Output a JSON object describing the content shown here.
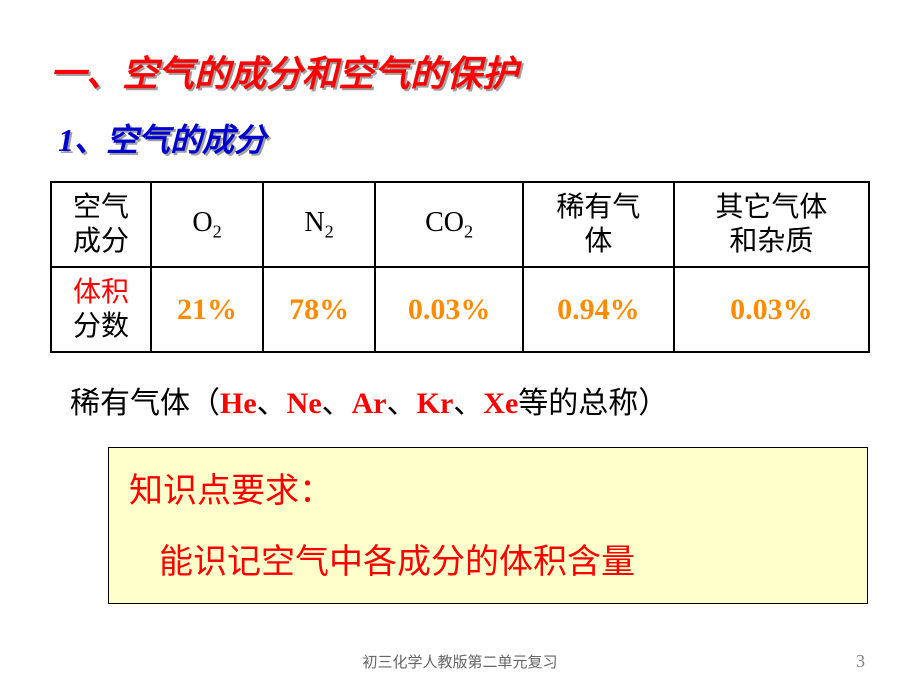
{
  "main_title": "一、空气的成分和空气的保护",
  "sub_title": "1、空气的成分",
  "table": {
    "columns": [
      "空气\n成分",
      "O2",
      "N2",
      "CO2",
      "稀有气\n体",
      "其它气体\n和杂质"
    ],
    "row_label_html": {
      "red": "体积",
      "black": "分数"
    },
    "values": [
      "21%",
      "78%",
      "0.03%",
      "0.94%",
      "0.03%"
    ],
    "col_widths": [
      "100px",
      "120px",
      "130px",
      "155px",
      "150px",
      "170px"
    ],
    "border_color": "#000000",
    "value_color": "#ff8c00",
    "header_color": "#000000"
  },
  "noble_line": {
    "prefix": "稀有气体（",
    "elements": [
      "He",
      "Ne",
      "Ar",
      "Kr",
      "Xe"
    ],
    "sep": "、",
    "suffix": "等的总称）"
  },
  "highlight": {
    "bg": "#ffffcc",
    "title": "知识点要求：",
    "text": "能识记空气中各成分的体积含量",
    "color": "#ff0000"
  },
  "footer": "初三化学人教版第二单元复习",
  "page_number": "3"
}
